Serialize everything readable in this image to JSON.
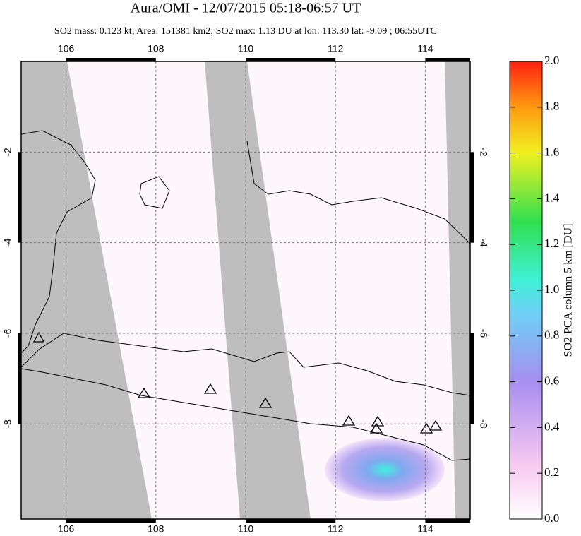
{
  "chart_data": {
    "type": "map",
    "title": "Aura/OMI - 12/07/2015 05:18-06:57 UT",
    "subtitle": "SO2 mass: 0.123 kt; Area: 151381 km2; SO2 max: 1.13 DU at lon: 113.30 lat: -9.09 ; 06:55UTC",
    "xlim": [
      105,
      115
    ],
    "xticks": [
      106,
      108,
      110,
      112,
      114
    ],
    "ylim": [
      -10.1,
      0
    ],
    "yticks": [
      -2,
      -4,
      -6,
      -8
    ],
    "grid": true,
    "colorbar": {
      "label": "SO2 PCA column 5 km [DU]",
      "lim": [
        0,
        2
      ],
      "ticks": [
        {
          "value": 0,
          "label": "0.0"
        },
        0.2,
        0.4,
        0.6,
        0.8,
        {
          "value": 1,
          "label": "1.0"
        },
        1.2,
        1.4,
        1.6,
        1.8,
        {
          "value": 2,
          "label": "2.0"
        }
      ]
    }
  }
}
